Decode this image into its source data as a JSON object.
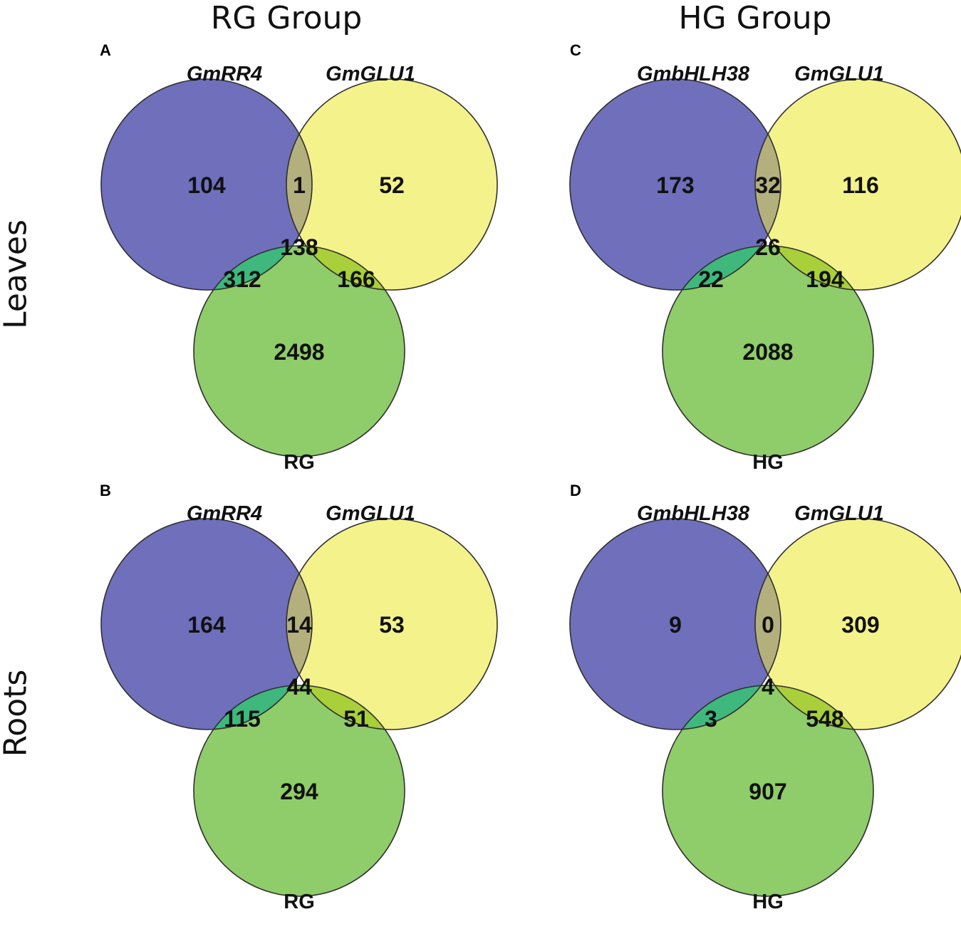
{
  "columns": [
    "RG Group",
    "HG Group"
  ],
  "rows": [
    "Leaves",
    "Roots"
  ],
  "colors": {
    "set1": "#6f6fbc",
    "set2": "#f4f28a",
    "set3": "#8fcc6a",
    "set1_set2": "#b4b07e",
    "set1_set3": "#3fb87e",
    "set2_set3": "#a9cf3a",
    "all": "#66bb44",
    "stroke": "#2f2f2f",
    "count_text": "#111111"
  },
  "panels": [
    {
      "id": "A",
      "sets": [
        "GmRR4",
        "GmGLU1",
        "RG"
      ],
      "counts": {
        "only1": "104",
        "only2": "52",
        "only3": "2498",
        "s12": "1",
        "s13": "312",
        "s23": "166",
        "s123": "138"
      }
    },
    {
      "id": "B",
      "sets": [
        "GmRR4",
        "GmGLU1",
        "RG"
      ],
      "counts": {
        "only1": "164",
        "only2": "53",
        "only3": "294",
        "s12": "14",
        "s13": "115",
        "s23": "51",
        "s123": "44"
      }
    },
    {
      "id": "C",
      "sets": [
        "GmbHLH38",
        "GmGLU1",
        "HG"
      ],
      "counts": {
        "only1": "173",
        "only2": "116",
        "only3": "2088",
        "s12": "32",
        "s13": "22",
        "s23": "194",
        "s123": "26"
      }
    },
    {
      "id": "D",
      "sets": [
        "GmbHLH38",
        "GmGLU1",
        "HG"
      ],
      "counts": {
        "only1": "9",
        "only2": "309",
        "only3": "907",
        "s12": "0",
        "s13": "3",
        "s23": "548",
        "s123": "4"
      }
    }
  ]
}
